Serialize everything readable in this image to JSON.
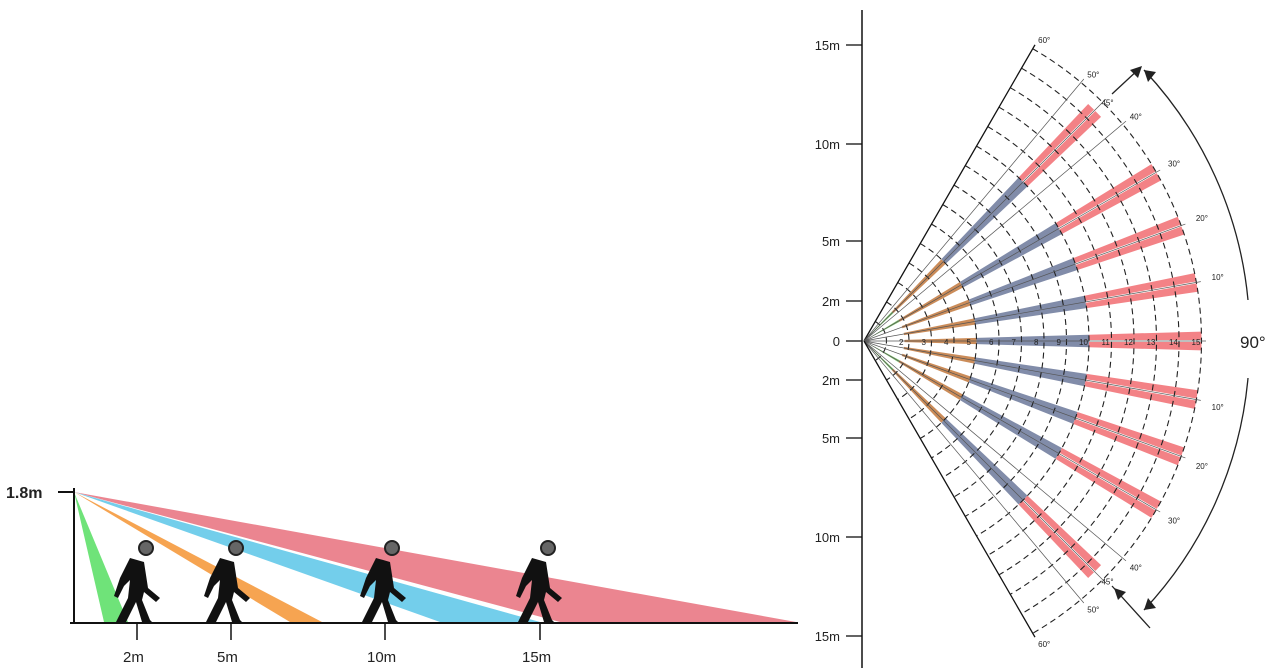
{
  "side_view": {
    "height_label": "1.8m",
    "distance_labels": [
      "2m",
      "5m",
      "10m",
      "15m"
    ],
    "zone_colors": [
      "#5fe06a",
      "#f59a3e",
      "#5bc6e8",
      "#e8707c"
    ],
    "person_color": "#111111",
    "head_color": "#666666"
  },
  "top_view": {
    "y_axis_labels": [
      "15m",
      "10m",
      "5m",
      "2m",
      "0",
      "2m",
      "5m",
      "10m",
      "15m"
    ],
    "angle_labels": [
      "60°",
      "50°",
      "45°",
      "40°",
      "30°",
      "20°",
      "10°",
      "10°",
      "20°",
      "30°",
      "40°",
      "45°",
      "50°",
      "60°"
    ],
    "ring_labels": [
      "2",
      "3",
      "4",
      "5",
      "6",
      "7",
      "8",
      "9",
      "10",
      "11",
      "12",
      "13",
      "14",
      "15"
    ],
    "coverage_label": "90°",
    "zone_colors": {
      "near": "#7ec86a",
      "mid": "#c88650",
      "long": "#7a86a4",
      "far": "#f27b80"
    }
  }
}
